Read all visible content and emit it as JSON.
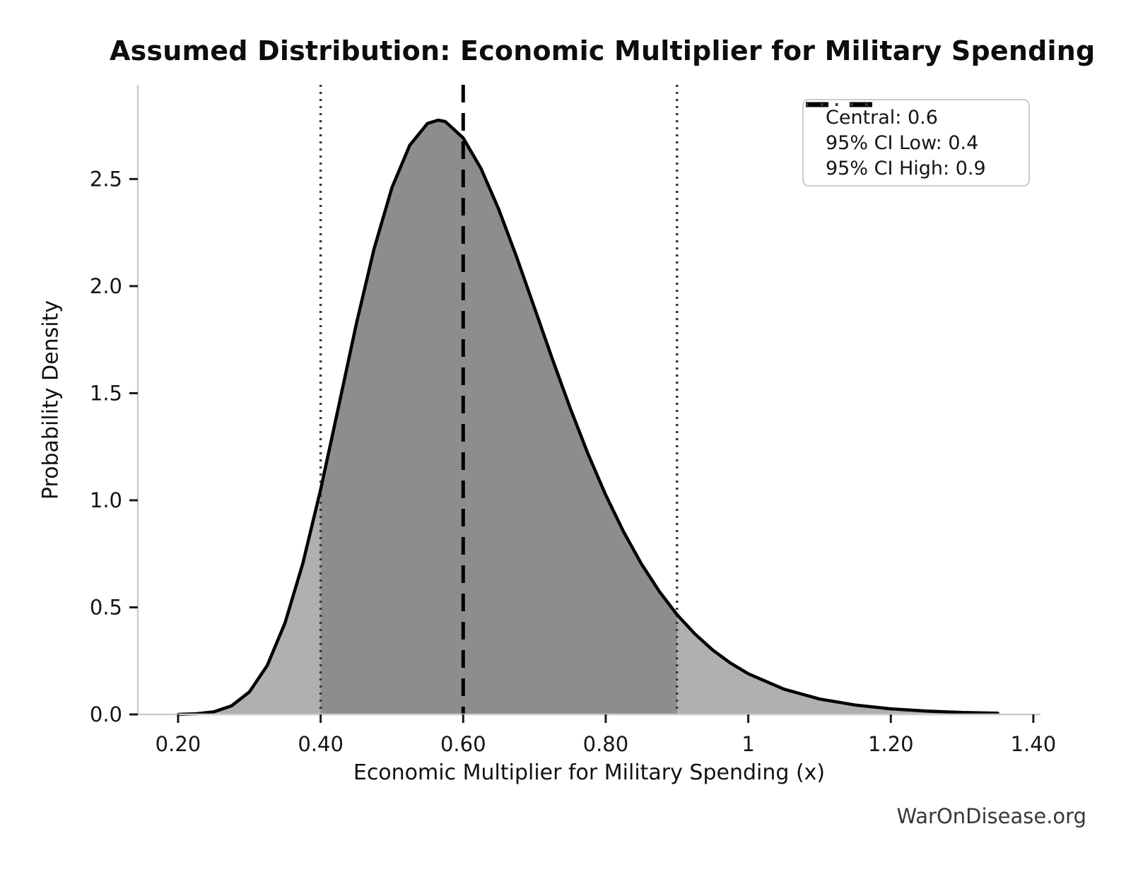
{
  "chart_data": {
    "type": "area",
    "title": "Assumed Distribution: Economic Multiplier for Military Spending",
    "xlabel": "Economic Multiplier for Military Spending (x)",
    "ylabel": "Probability Density",
    "watermark": "WarOnDisease.org",
    "xlim": [
      0.1435,
      1.41
    ],
    "ylim": [
      0,
      2.94
    ],
    "grid": false,
    "xticks": {
      "values": [
        0.2,
        0.4,
        0.6,
        0.8,
        1.0,
        1.2,
        1.4
      ],
      "labels": [
        "0.20",
        "0.40",
        "0.60",
        "0.80",
        "1",
        "1.20",
        "1.40"
      ]
    },
    "yticks": {
      "values": [
        0.0,
        0.5,
        1.0,
        1.5,
        2.0,
        2.5
      ],
      "labels": [
        "0.0",
        "0.5",
        "1.0",
        "1.5",
        "2.0",
        "2.5"
      ]
    },
    "series": [
      {
        "name": "density-curve",
        "color": "#000000",
        "x": [
          0.2,
          0.225,
          0.25,
          0.275,
          0.3,
          0.325,
          0.35,
          0.375,
          0.4,
          0.425,
          0.45,
          0.475,
          0.5,
          0.525,
          0.55,
          0.565,
          0.575,
          0.6,
          0.625,
          0.65,
          0.675,
          0.7,
          0.725,
          0.75,
          0.775,
          0.8,
          0.825,
          0.85,
          0.875,
          0.9,
          0.925,
          0.95,
          0.975,
          1.0,
          1.05,
          1.1,
          1.15,
          1.2,
          1.25,
          1.3,
          1.35
        ],
        "y": [
          0.0,
          0.003,
          0.012,
          0.04,
          0.105,
          0.228,
          0.427,
          0.705,
          1.05,
          1.434,
          1.822,
          2.174,
          2.46,
          2.658,
          2.76,
          2.775,
          2.768,
          2.692,
          2.549,
          2.358,
          2.136,
          1.899,
          1.661,
          1.432,
          1.218,
          1.025,
          0.853,
          0.703,
          0.575,
          0.466,
          0.376,
          0.301,
          0.24,
          0.19,
          0.118,
          0.072,
          0.044,
          0.026,
          0.016,
          0.009,
          0.006
        ]
      }
    ],
    "fills": [
      {
        "name": "distribution-area",
        "range": [
          0.2,
          1.35
        ],
        "color": "#b0b0b0"
      },
      {
        "name": "ci-area",
        "range": [
          0.4,
          0.9
        ],
        "color": "#8d8d8d"
      }
    ],
    "markers": [
      {
        "name": "central",
        "value": 0.6,
        "style": "dashed",
        "color": "#000000"
      },
      {
        "name": "ci-low",
        "value": 0.4,
        "style": "dotted",
        "color": "#3a3a3a"
      },
      {
        "name": "ci-high",
        "value": 0.9,
        "style": "dotted",
        "color": "#3a3a3a"
      }
    ],
    "legend": {
      "position": "upper-right",
      "items": [
        {
          "label": "Central: 0.6",
          "style": "dashed",
          "color": "#000000"
        },
        {
          "label": "95% CI Low: 0.4",
          "style": "dotted",
          "color": "#3a3a3a"
        },
        {
          "label": "95% CI High: 0.9",
          "style": "dotted",
          "color": "#3a3a3a"
        }
      ]
    },
    "colors": {
      "background": "#ffffff",
      "spine": "#cccccc",
      "tick": "#1a1a1a",
      "text": "#000000",
      "watermark": "#383838"
    }
  }
}
